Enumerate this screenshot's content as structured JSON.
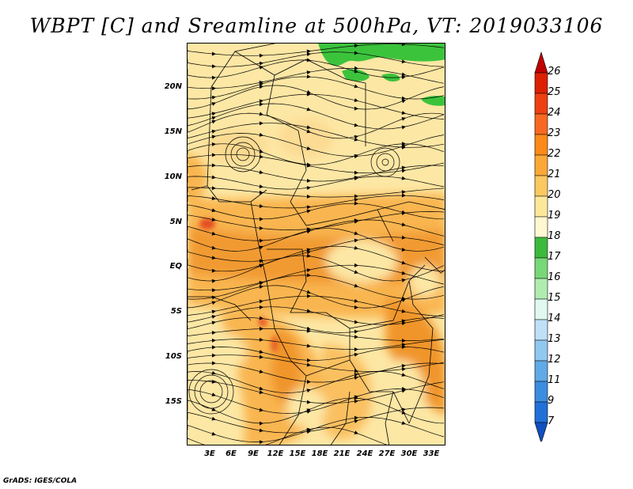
{
  "title": "WBPT [C] and Sreamline at 500hPa, VT: 2019033106",
  "footer": "GrADS: IGES/COLA",
  "lat_labels": [
    "20N",
    "15N",
    "10N",
    "5N",
    "EQ",
    "5S",
    "10S",
    "15S"
  ],
  "lon_labels": [
    "3E",
    "6E",
    "9E",
    "12E",
    "15E",
    "18E",
    "21E",
    "24E",
    "27E",
    "30E",
    "33E"
  ],
  "colorbar": {
    "labels": [
      "26",
      "25",
      "24",
      "23",
      "22",
      "21",
      "20",
      "19",
      "18",
      "17",
      "16",
      "15",
      "14",
      "13",
      "12",
      "11",
      "9",
      "7"
    ],
    "colors": [
      "#c00000",
      "#dc2000",
      "#ee4010",
      "#f86820",
      "#fc8a18",
      "#fca838",
      "#fcc860",
      "#fde89a",
      "#fff8d0",
      "#3cba3c",
      "#78d878",
      "#b0ecb0",
      "#e0f8f0",
      "#c0e0f8",
      "#90c8f0",
      "#60aae8",
      "#3c8ce0",
      "#2070d8",
      "#1050c0"
    ]
  },
  "colors": {
    "green": "#3cc33c",
    "land_light": "#fde7a4",
    "orange_mid": "#f9b550",
    "orange_deep": "#f0952a",
    "red_spot": "#e45020"
  }
}
